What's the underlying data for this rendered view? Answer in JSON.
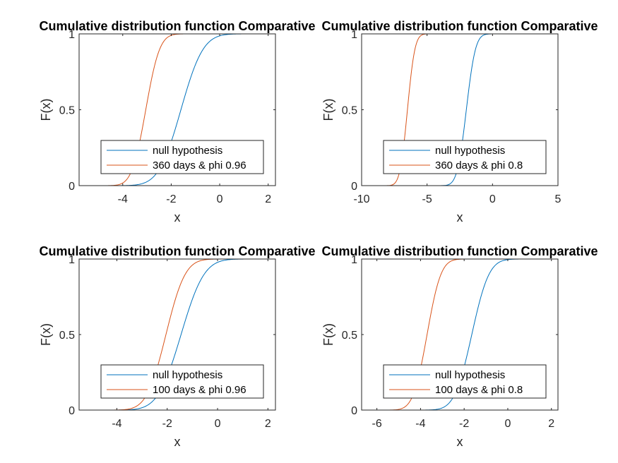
{
  "chart_data": [
    {
      "type": "line",
      "title": "Cumulative distribution function Comparative",
      "xlabel": "x",
      "ylabel": "F(x)",
      "xlim": [
        -5.8,
        2.3
      ],
      "ylim": [
        0,
        1
      ],
      "xticks": [
        -4,
        -2,
        0,
        2
      ],
      "yticks": [
        0,
        0.5,
        1
      ],
      "grid": false,
      "legend_position": "bottom-right",
      "series": [
        {
          "name": "null hypothesis",
          "color": "#0072BD",
          "mu": -1.6,
          "sigma": 0.72,
          "x": [
            -4.5,
            -4.0,
            -3.5,
            -3.0,
            -2.5,
            -2.0,
            -1.5,
            -1.0,
            -0.5,
            0.0,
            0.5,
            1.0,
            1.5,
            2.0
          ],
          "y": [
            0.0,
            0.0004,
            0.004,
            0.026,
            0.106,
            0.289,
            0.555,
            0.797,
            0.936,
            0.987,
            0.998,
            1.0,
            1.0,
            1.0
          ]
        },
        {
          "name": "360 days & phi 0.96",
          "color": "#D95319",
          "mu": -3.05,
          "sigma": 0.45,
          "x": [
            -5.5,
            -5.0,
            -4.5,
            -4.0,
            -3.5,
            -3.0,
            -2.5,
            -2.0,
            -1.5,
            -1.0
          ],
          "y": [
            0.0,
            0.0001,
            0.0006,
            0.017,
            0.159,
            0.544,
            0.889,
            0.99,
            1.0,
            1.0
          ]
        }
      ]
    },
    {
      "type": "line",
      "title": "Cumulative distribution function Comparative",
      "xlabel": "x",
      "ylabel": "F(x)",
      "xlim": [
        -10,
        5
      ],
      "ylim": [
        0,
        1
      ],
      "xticks": [
        -10,
        -5,
        0,
        5
      ],
      "yticks": [
        0,
        0.5,
        1
      ],
      "grid": false,
      "legend_position": "bottom-right",
      "series": [
        {
          "name": "null hypothesis",
          "color": "#0072BD",
          "mu": -2.0,
          "sigma": 0.55,
          "x": [
            -4.0,
            -3.5,
            -3.0,
            -2.5,
            -2.0,
            -1.5,
            -1.0,
            -0.5,
            0.0,
            0.5,
            1.0,
            2.0
          ],
          "y": [
            0.0,
            0.003,
            0.035,
            0.182,
            0.5,
            0.818,
            0.965,
            0.997,
            1.0,
            1.0,
            1.0,
            1.0
          ]
        },
        {
          "name": "360 days & phi 0.8",
          "color": "#D95319",
          "mu": -6.5,
          "sigma": 0.45,
          "x": [
            -9.0,
            -8.5,
            -8.0,
            -7.5,
            -7.0,
            -6.5,
            -6.0,
            -5.5,
            -5.0,
            -4.5
          ],
          "y": [
            0.0,
            0.0,
            0.0004,
            0.013,
            0.133,
            0.5,
            0.867,
            0.987,
            1.0,
            1.0
          ]
        }
      ]
    },
    {
      "type": "line",
      "title": "Cumulative distribution function Comparative",
      "xlabel": "x",
      "ylabel": "F(x)",
      "xlim": [
        -5.5,
        2.3
      ],
      "ylim": [
        0,
        1
      ],
      "xticks": [
        -4,
        -2,
        0,
        2
      ],
      "yticks": [
        0,
        0.5,
        1
      ],
      "grid": false,
      "legend_position": "bottom-right",
      "series": [
        {
          "name": "null hypothesis",
          "color": "#0072BD",
          "mu": -1.45,
          "sigma": 0.72,
          "x": [
            -4.5,
            -4.0,
            -3.5,
            -3.0,
            -2.5,
            -2.0,
            -1.5,
            -1.0,
            -0.5,
            0.0,
            0.5,
            1.0,
            1.5,
            2.0
          ],
          "y": [
            0.0,
            0.0002,
            0.002,
            0.016,
            0.072,
            0.222,
            0.472,
            0.734,
            0.906,
            0.978,
            0.997,
            1.0,
            1.0,
            1.0
          ]
        },
        {
          "name": "100 days & phi 0.96",
          "color": "#D95319",
          "mu": -2.05,
          "sigma": 0.6,
          "x": [
            -5.0,
            -4.5,
            -4.0,
            -3.5,
            -3.0,
            -2.5,
            -2.0,
            -1.5,
            -1.0,
            -0.5,
            0.0
          ],
          "y": [
            0.0,
            0.0,
            0.0006,
            0.008,
            0.057,
            0.226,
            0.533,
            0.82,
            0.96,
            0.995,
            1.0
          ]
        }
      ]
    },
    {
      "type": "line",
      "title": "Cumulative distribution function Comparative",
      "xlabel": "x",
      "ylabel": "F(x)",
      "xlim": [
        -6.7,
        2.3
      ],
      "ylim": [
        0,
        1
      ],
      "xticks": [
        -6,
        -4,
        -2,
        0,
        2
      ],
      "yticks": [
        0,
        0.5,
        1
      ],
      "grid": false,
      "legend_position": "bottom-right",
      "series": [
        {
          "name": "null hypothesis",
          "color": "#0072BD",
          "mu": -1.65,
          "sigma": 0.62,
          "x": [
            -4.0,
            -3.5,
            -3.0,
            -2.5,
            -2.0,
            -1.5,
            -1.0,
            -0.5,
            0.0,
            0.5,
            1.0,
            2.0
          ],
          "y": [
            0.0,
            0.001,
            0.015,
            0.085,
            0.287,
            0.596,
            0.853,
            0.968,
            0.996,
            1.0,
            1.0,
            1.0
          ]
        },
        {
          "name": "100 days & phi 0.8",
          "color": "#D95319",
          "mu": -3.7,
          "sigma": 0.5,
          "x": [
            -6.0,
            -5.5,
            -5.0,
            -4.5,
            -4.0,
            -3.5,
            -3.0,
            -2.5,
            -2.0,
            -1.5
          ],
          "y": [
            0.0,
            0.0002,
            0.005,
            0.055,
            0.274,
            0.655,
            0.919,
            0.992,
            1.0,
            1.0
          ]
        }
      ]
    }
  ]
}
